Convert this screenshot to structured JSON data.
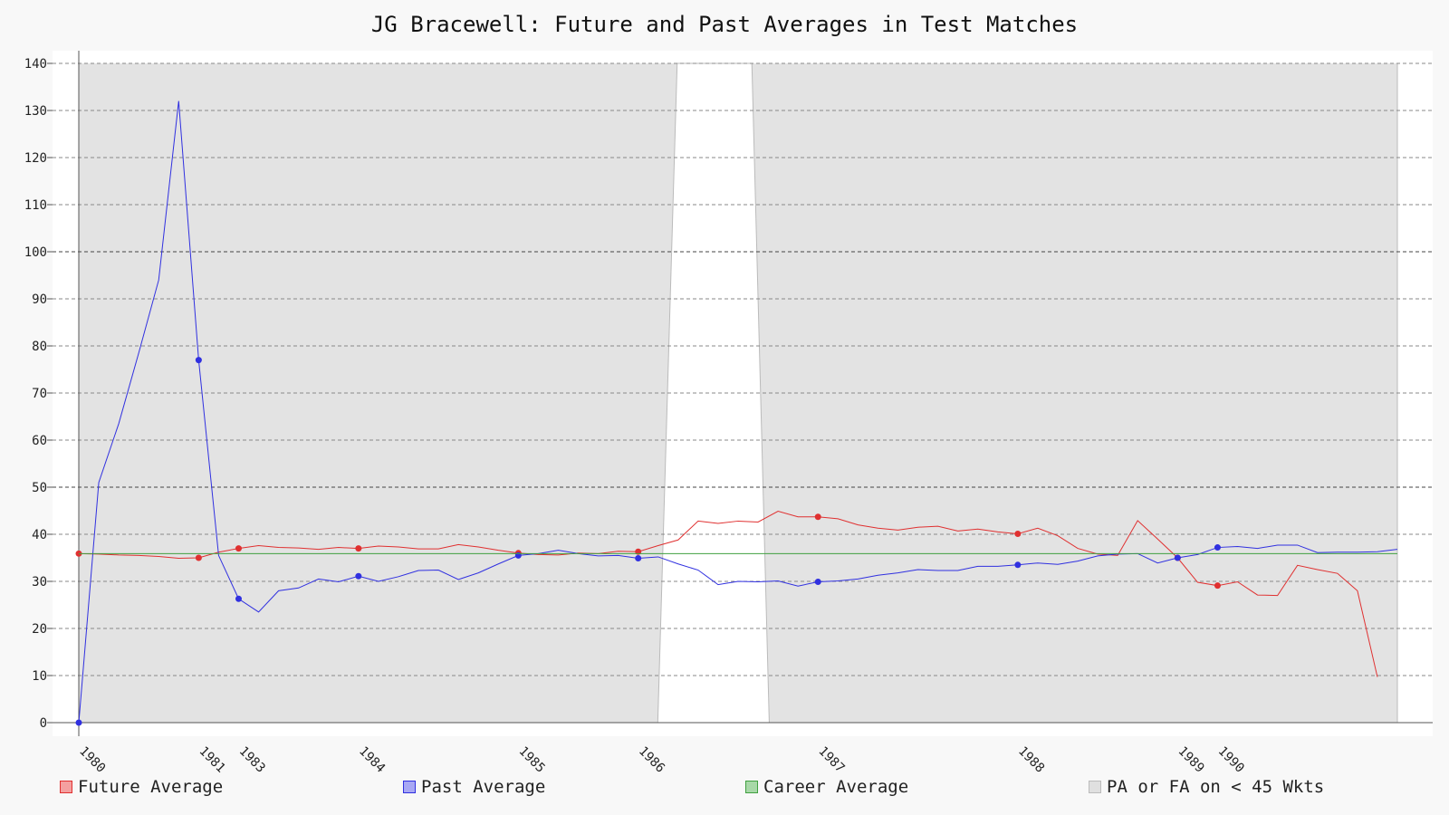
{
  "chart_data": {
    "type": "line",
    "title": "JG Bracewell: Future and Past Averages in Test Matches",
    "xlabel": "",
    "ylabel": "",
    "ylim": [
      0,
      140
    ],
    "yticks": [
      0,
      10,
      20,
      30,
      40,
      50,
      60,
      70,
      80,
      90,
      100,
      110,
      120,
      130,
      140
    ],
    "grid": true,
    "x_tick_labels": [
      {
        "label": "1980",
        "match": 0
      },
      {
        "label": "1981",
        "match": 6
      },
      {
        "label": "1983",
        "match": 8
      },
      {
        "label": "1984",
        "match": 14
      },
      {
        "label": "1985",
        "match": 22
      },
      {
        "label": "1986",
        "match": 28
      },
      {
        "label": "1987",
        "match": 37
      },
      {
        "label": "1988",
        "match": 47
      },
      {
        "label": "1989",
        "match": 55
      },
      {
        "label": "1990",
        "match": 57
      }
    ],
    "series": [
      {
        "name": "Future Average",
        "color": "#e03030",
        "values": [
          35.9,
          35.8,
          35.6,
          35.5,
          35.3,
          34.9,
          35.0,
          36.2,
          37.0,
          37.6,
          37.2,
          37.1,
          36.8,
          37.2,
          37.0,
          37.5,
          37.3,
          36.9,
          36.9,
          37.8,
          37.3,
          36.6,
          36.0,
          35.7,
          35.6,
          36.0,
          35.9,
          36.4,
          36.3,
          37.6,
          38.8,
          42.8,
          42.3,
          42.8,
          42.6,
          44.9,
          43.7,
          43.7,
          43.3,
          42.0,
          41.3,
          40.9,
          41.5,
          41.7,
          40.7,
          41.1,
          40.5,
          40.1,
          41.3,
          39.7,
          37.0,
          35.8,
          35.5,
          42.9,
          39.0,
          35.0,
          29.8,
          29.1,
          29.9,
          27.1,
          27.0,
          33.4,
          32.5,
          31.7,
          28.0,
          9.7
        ],
        "markers": [
          0,
          6,
          8,
          14,
          22,
          28,
          37,
          47,
          55,
          57
        ]
      },
      {
        "name": "Past Average",
        "color": "#3030e0",
        "values": [
          0.0,
          51.0,
          63.5,
          78.5,
          94.0,
          132.0,
          77.0,
          35.5,
          26.3,
          23.5,
          28.0,
          28.6,
          30.5,
          29.9,
          31.1,
          30.0,
          31.0,
          32.3,
          32.4,
          30.4,
          31.8,
          33.7,
          35.5,
          35.9,
          36.6,
          35.9,
          35.4,
          35.5,
          34.9,
          35.2,
          33.7,
          32.4,
          29.3,
          30.0,
          29.9,
          30.1,
          29.0,
          29.9,
          30.1,
          30.5,
          31.3,
          31.8,
          32.5,
          32.3,
          32.3,
          33.2,
          33.2,
          33.5,
          33.9,
          33.6,
          34.3,
          35.4,
          35.8,
          35.9,
          33.9,
          35.0,
          35.7,
          37.2,
          37.4,
          37.0,
          37.7,
          37.7,
          36.1,
          36.2,
          36.2,
          36.3,
          36.8
        ],
        "markers": [
          0,
          6,
          8,
          14,
          22,
          28,
          37,
          47,
          55,
          57
        ]
      },
      {
        "name": "Career Average",
        "color": "#40a040",
        "values": [
          35.9,
          35.9
        ]
      }
    ],
    "shaded_region": {
      "name": "PA or FA on < 45 Wkts",
      "color": "#e3e3e3",
      "white_gap_bottom": [
        28.98,
        34.56
      ],
      "white_gap_top": [
        29.95,
        33.69
      ]
    }
  },
  "legend": {
    "future_label": "Future Average",
    "past_label": "Past Average",
    "career_label": "Career Average",
    "region_label": "PA or FA on < 45 Wkts",
    "future_color": "#e03030",
    "past_color": "#3030e0",
    "career_color": "#40a040",
    "region_color": "#dddddd"
  }
}
